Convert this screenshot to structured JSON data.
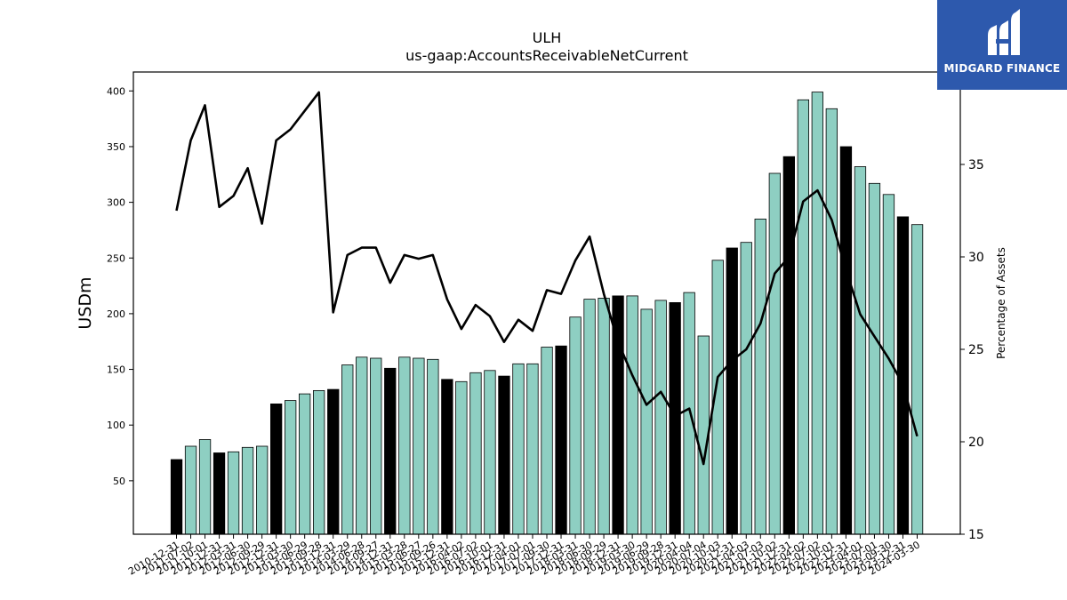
{
  "brand": {
    "name": "MIDGARD FINANCE",
    "bg_color": "#2d59ad",
    "icon": "midgard-m-logo-icon"
  },
  "colors": {
    "bar_regular": "#8ecfc2",
    "bar_highlight": "#000000",
    "line": "#000000"
  },
  "chart_data": {
    "type": "bar",
    "title": "ULH",
    "subtitle": "us-gaap:AccountsReceivableNetCurrent",
    "ylabel": "USDm",
    "y2label": "Percentage of Assets",
    "ylim": [
      2,
      417
    ],
    "y2lim": [
      15,
      40
    ],
    "yticks": [
      50,
      100,
      150,
      200,
      250,
      300,
      350,
      400
    ],
    "y2ticks": [
      15,
      20,
      25,
      30,
      35
    ],
    "categories": [
      "2010-12-31",
      "2011-07-02",
      "2011-10-01",
      "2011-12-31",
      "2012-03-31",
      "2012-06-30",
      "2012-09-29",
      "2012-12-31",
      "2013-03-30",
      "2013-06-29",
      "2013-09-28",
      "2013-12-31",
      "2014-03-29",
      "2014-06-28",
      "2014-09-27",
      "2014-12-31",
      "2015-03-28",
      "2015-06-27",
      "2015-09-26",
      "2015-12-31",
      "2016-04-02",
      "2016-07-02",
      "2016-10-01",
      "2016-12-31",
      "2017-04-01",
      "2017-07-01",
      "2017-09-30",
      "2017-12-31",
      "2018-03-31",
      "2018-06-30",
      "2018-09-29",
      "2018-12-31",
      "2019-03-30",
      "2019-06-29",
      "2019-09-28",
      "2019-12-31",
      "2020-04-04",
      "2020-07-04",
      "2020-10-03",
      "2020-12-31",
      "2021-04-03",
      "2021-07-03",
      "2021-10-02",
      "2021-12-31",
      "2022-04-02",
      "2022-07-02",
      "2022-10-01",
      "2022-12-31",
      "2023-04-01",
      "2023-07-01",
      "2023-09-30",
      "2023-12-31",
      "2024-03-30"
    ],
    "series": [
      {
        "kind": "bar",
        "values": [
          69,
          81,
          87,
          75,
          76,
          80,
          81,
          119,
          122,
          128,
          131,
          132,
          154,
          161,
          160,
          151,
          161,
          160,
          159,
          141,
          139,
          147,
          149,
          144,
          155,
          155,
          170,
          171,
          197,
          213,
          214,
          216,
          216,
          204,
          212,
          210,
          219,
          180,
          248,
          259,
          264,
          285,
          326,
          341,
          392,
          399,
          384,
          350,
          332,
          317,
          307,
          287,
          280
        ],
        "highlight": [
          true,
          false,
          false,
          true,
          false,
          false,
          false,
          true,
          false,
          false,
          false,
          true,
          false,
          false,
          false,
          true,
          false,
          false,
          false,
          true,
          false,
          false,
          false,
          true,
          false,
          false,
          false,
          true,
          false,
          false,
          false,
          true,
          false,
          false,
          false,
          true,
          false,
          false,
          false,
          true,
          false,
          false,
          false,
          true,
          false,
          false,
          false,
          true,
          false,
          false,
          false,
          true,
          false
        ]
      },
      {
        "kind": "line",
        "axis": "right",
        "values": [
          32.5,
          36.3,
          38.2,
          32.7,
          33.3,
          34.8,
          31.8,
          36.3,
          36.9,
          37.9,
          38.9,
          27.0,
          30.1,
          30.5,
          30.5,
          28.6,
          30.1,
          29.9,
          30.1,
          27.7,
          26.1,
          27.4,
          26.8,
          25.4,
          26.6,
          26.0,
          28.2,
          28.0,
          29.8,
          31.1,
          28.0,
          25.4,
          23.6,
          22.0,
          22.7,
          21.4,
          21.8,
          18.8,
          23.5,
          24.4,
          25.0,
          26.4,
          29.1,
          30.0,
          33.0,
          33.6,
          32.0,
          29.3,
          26.9,
          25.7,
          24.5,
          23.1,
          20.3
        ]
      }
    ],
    "grid": false,
    "legend": "none"
  }
}
